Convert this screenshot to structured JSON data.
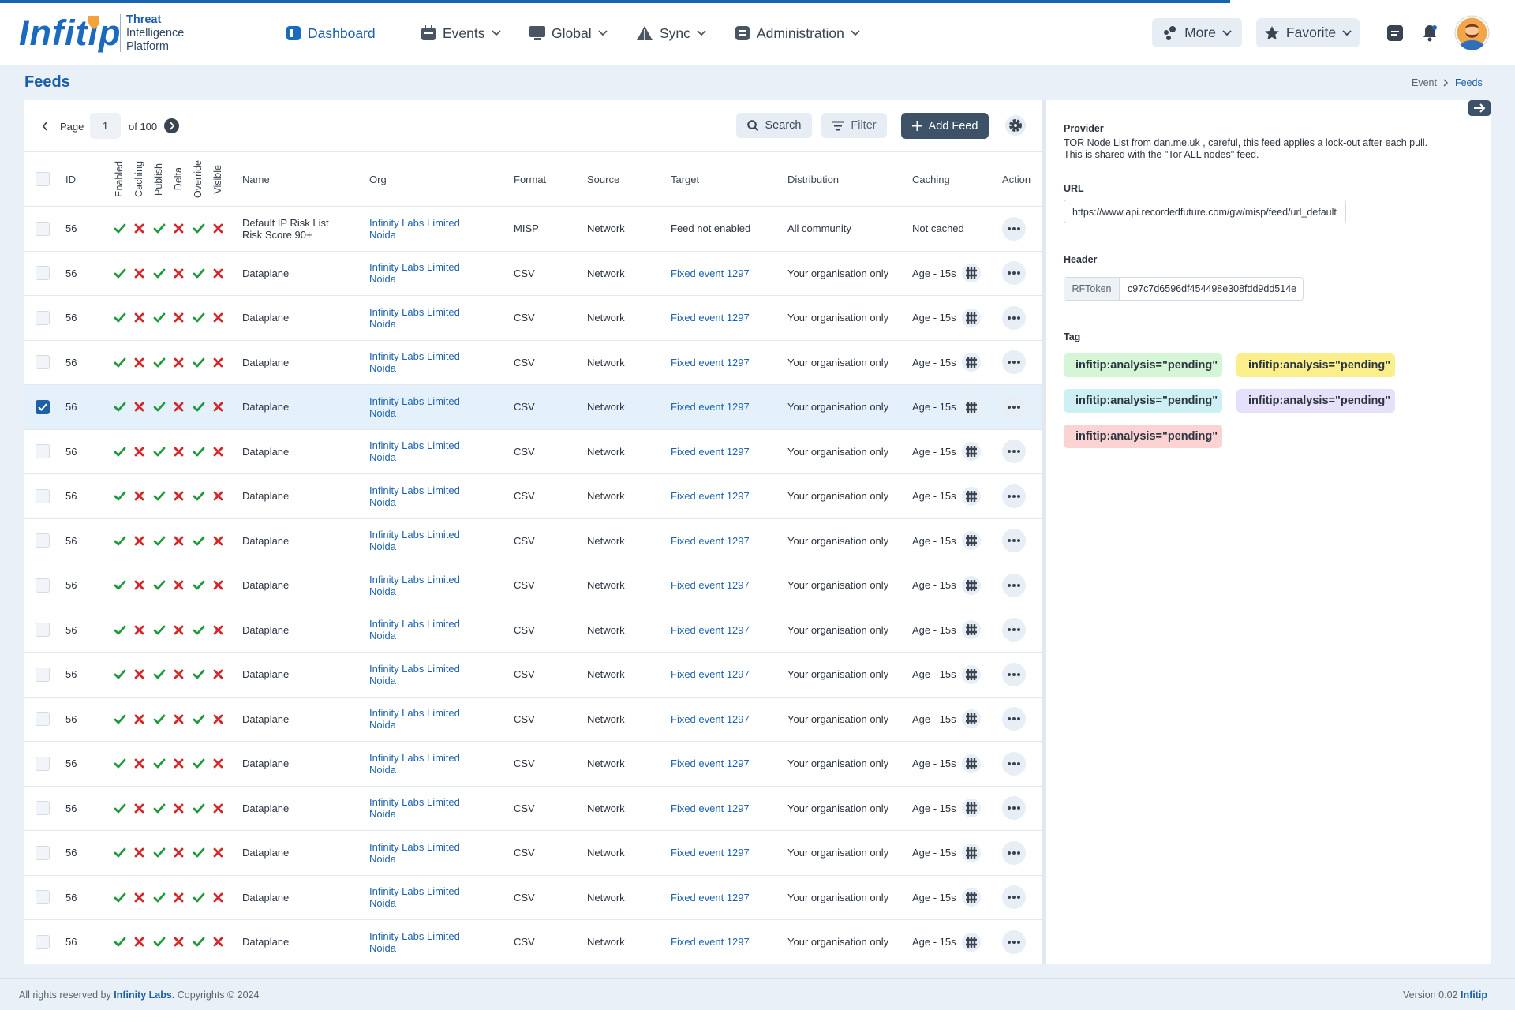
{
  "header": {
    "logo": "Infitip",
    "tagline": [
      "Threat",
      "Intelligence",
      "Platform"
    ],
    "nav": [
      "Dashboard",
      "Events",
      "Global",
      "Sync",
      "Administration"
    ],
    "more": "More",
    "favorite": "Favorite"
  },
  "page": {
    "title": "Feeds",
    "breadcrumb": [
      "Event",
      "Feeds"
    ]
  },
  "toolbar": {
    "page_label": "Page",
    "page": 1,
    "of": "of 100",
    "search": "Search",
    "filter": "Filter",
    "add": "Add Feed"
  },
  "table": {
    "columns": [
      "ID",
      "Enabled",
      "Caching",
      "Publish",
      "Delta",
      "Override",
      "Visible",
      "Name",
      "Org",
      "Format",
      "Source",
      "Target",
      "Distribution",
      "Caching",
      "Action"
    ],
    "rows": [
      {
        "id": 56,
        "flags": [
          true,
          false,
          true,
          false,
          true,
          false
        ],
        "name": [
          "Default IP Risk List",
          "Risk Score 90+"
        ],
        "org": [
          "Infinity Labs Limited",
          "Noida"
        ],
        "format": "MISP",
        "source": "Network",
        "target": "Feed not enabled",
        "target_link": false,
        "distribution": "All community",
        "caching": "Not cached",
        "cache_icon": false,
        "selected": false
      },
      {
        "id": 56,
        "flags": [
          true,
          false,
          true,
          false,
          true,
          false
        ],
        "name": [
          "Dataplane"
        ],
        "org": [
          "Infinity Labs Limited",
          "Noida"
        ],
        "format": "CSV",
        "source": "Network",
        "target": "Fixed event 1297",
        "target_link": true,
        "distribution": "Your organisation only",
        "caching": "Age - 15s",
        "cache_icon": true,
        "selected": false
      },
      {
        "id": 56,
        "flags": [
          true,
          false,
          true,
          false,
          true,
          false
        ],
        "name": [
          "Dataplane"
        ],
        "org": [
          "Infinity Labs Limited",
          "Noida"
        ],
        "format": "CSV",
        "source": "Network",
        "target": "Fixed event 1297",
        "target_link": true,
        "distribution": "Your organisation only",
        "caching": "Age - 15s",
        "cache_icon": true,
        "selected": false
      },
      {
        "id": 56,
        "flags": [
          true,
          false,
          true,
          false,
          true,
          false
        ],
        "name": [
          "Dataplane"
        ],
        "org": [
          "Infinity Labs Limited",
          "Noida"
        ],
        "format": "CSV",
        "source": "Network",
        "target": "Fixed event 1297",
        "target_link": true,
        "distribution": "Your organisation only",
        "caching": "Age - 15s",
        "cache_icon": true,
        "selected": false
      },
      {
        "id": 56,
        "flags": [
          true,
          false,
          true,
          false,
          true,
          false
        ],
        "name": [
          "Dataplane"
        ],
        "org": [
          "Infinity Labs Limited",
          "Noida"
        ],
        "format": "CSV",
        "source": "Network",
        "target": "Fixed event 1297",
        "target_link": true,
        "distribution": "Your organisation only",
        "caching": "Age - 15s",
        "cache_icon": true,
        "selected": true
      },
      {
        "id": 56,
        "flags": [
          true,
          false,
          true,
          false,
          true,
          false
        ],
        "name": [
          "Dataplane"
        ],
        "org": [
          "Infinity Labs Limited",
          "Noida"
        ],
        "format": "CSV",
        "source": "Network",
        "target": "Fixed event 1297",
        "target_link": true,
        "distribution": "Your organisation only",
        "caching": "Age - 15s",
        "cache_icon": true,
        "selected": false
      },
      {
        "id": 56,
        "flags": [
          true,
          false,
          true,
          false,
          true,
          false
        ],
        "name": [
          "Dataplane"
        ],
        "org": [
          "Infinity Labs Limited",
          "Noida"
        ],
        "format": "CSV",
        "source": "Network",
        "target": "Fixed event 1297",
        "target_link": true,
        "distribution": "Your organisation only",
        "caching": "Age - 15s",
        "cache_icon": true,
        "selected": false
      },
      {
        "id": 56,
        "flags": [
          true,
          false,
          true,
          false,
          true,
          false
        ],
        "name": [
          "Dataplane"
        ],
        "org": [
          "Infinity Labs Limited",
          "Noida"
        ],
        "format": "CSV",
        "source": "Network",
        "target": "Fixed event 1297",
        "target_link": true,
        "distribution": "Your organisation only",
        "caching": "Age - 15s",
        "cache_icon": true,
        "selected": false
      },
      {
        "id": 56,
        "flags": [
          true,
          false,
          true,
          false,
          true,
          false
        ],
        "name": [
          "Dataplane"
        ],
        "org": [
          "Infinity Labs Limited",
          "Noida"
        ],
        "format": "CSV",
        "source": "Network",
        "target": "Fixed event 1297",
        "target_link": true,
        "distribution": "Your organisation only",
        "caching": "Age - 15s",
        "cache_icon": true,
        "selected": false
      },
      {
        "id": 56,
        "flags": [
          true,
          false,
          true,
          false,
          true,
          false
        ],
        "name": [
          "Dataplane"
        ],
        "org": [
          "Infinity Labs Limited",
          "Noida"
        ],
        "format": "CSV",
        "source": "Network",
        "target": "Fixed event 1297",
        "target_link": true,
        "distribution": "Your organisation only",
        "caching": "Age - 15s",
        "cache_icon": true,
        "selected": false
      },
      {
        "id": 56,
        "flags": [
          true,
          false,
          true,
          false,
          true,
          false
        ],
        "name": [
          "Dataplane"
        ],
        "org": [
          "Infinity Labs Limited",
          "Noida"
        ],
        "format": "CSV",
        "source": "Network",
        "target": "Fixed event 1297",
        "target_link": true,
        "distribution": "Your organisation only",
        "caching": "Age - 15s",
        "cache_icon": true,
        "selected": false
      },
      {
        "id": 56,
        "flags": [
          true,
          false,
          true,
          false,
          true,
          false
        ],
        "name": [
          "Dataplane"
        ],
        "org": [
          "Infinity Labs Limited",
          "Noida"
        ],
        "format": "CSV",
        "source": "Network",
        "target": "Fixed event 1297",
        "target_link": true,
        "distribution": "Your organisation only",
        "caching": "Age - 15s",
        "cache_icon": true,
        "selected": false
      },
      {
        "id": 56,
        "flags": [
          true,
          false,
          true,
          false,
          true,
          false
        ],
        "name": [
          "Dataplane"
        ],
        "org": [
          "Infinity Labs Limited",
          "Noida"
        ],
        "format": "CSV",
        "source": "Network",
        "target": "Fixed event 1297",
        "target_link": true,
        "distribution": "Your organisation only",
        "caching": "Age - 15s",
        "cache_icon": true,
        "selected": false
      },
      {
        "id": 56,
        "flags": [
          true,
          false,
          true,
          false,
          true,
          false
        ],
        "name": [
          "Dataplane"
        ],
        "org": [
          "Infinity Labs Limited",
          "Noida"
        ],
        "format": "CSV",
        "source": "Network",
        "target": "Fixed event 1297",
        "target_link": true,
        "distribution": "Your organisation only",
        "caching": "Age - 15s",
        "cache_icon": true,
        "selected": false
      },
      {
        "id": 56,
        "flags": [
          true,
          false,
          true,
          false,
          true,
          false
        ],
        "name": [
          "Dataplane"
        ],
        "org": [
          "Infinity Labs Limited",
          "Noida"
        ],
        "format": "CSV",
        "source": "Network",
        "target": "Fixed event 1297",
        "target_link": true,
        "distribution": "Your organisation only",
        "caching": "Age - 15s",
        "cache_icon": true,
        "selected": false
      },
      {
        "id": 56,
        "flags": [
          true,
          false,
          true,
          false,
          true,
          false
        ],
        "name": [
          "Dataplane"
        ],
        "org": [
          "Infinity Labs Limited",
          "Noida"
        ],
        "format": "CSV",
        "source": "Network",
        "target": "Fixed event 1297",
        "target_link": true,
        "distribution": "Your organisation only",
        "caching": "Age - 15s",
        "cache_icon": true,
        "selected": false
      },
      {
        "id": 56,
        "flags": [
          true,
          false,
          true,
          false,
          true,
          false
        ],
        "name": [
          "Dataplane"
        ],
        "org": [
          "Infinity Labs Limited",
          "Noida"
        ],
        "format": "CSV",
        "source": "Network",
        "target": "Fixed event 1297",
        "target_link": true,
        "distribution": "Your organisation only",
        "caching": "Age - 15s",
        "cache_icon": true,
        "selected": false
      }
    ]
  },
  "panel": {
    "provider_label": "Provider",
    "provider_text": [
      "TOR Node List from dan.me.uk , careful, this feed applies a lock-out after each pull.",
      "This is shared with the \"Tor ALL nodes\" feed."
    ],
    "url_label": "URL",
    "url": "https://www.api.recordedfuture.com/gw/misp/feed/url_default",
    "header_label": "Header",
    "header_key": "RFToken",
    "header_value": "c97c7d6596df454498e308fdd9dd514e",
    "tag_label": "Tag",
    "tags": [
      {
        "text": "infitip:analysis=\"pending\"",
        "color": "#d4f5d6",
        "icon_color": "#2e9d3a",
        "icon": "user"
      },
      {
        "text": "infitip:analysis=\"pending\"",
        "color": "#fbef8c",
        "icon_color": "#c99a06",
        "icon": "globe"
      },
      {
        "text": "infitip:analysis=\"pending\"",
        "color": "#cdf0f5",
        "icon_color": "#2a9fb0",
        "icon": "user"
      },
      {
        "text": "infitip:analysis=\"pending\"",
        "color": "#e6e0fa",
        "icon_color": "#7a62d6",
        "icon": "user"
      },
      {
        "text": "infitip:analysis=\"pending\"",
        "color": "#fbd3d3",
        "icon_color": "#d43a3a",
        "icon": "globe"
      }
    ]
  },
  "footer": {
    "left": "All rights reserved by",
    "company": "Infinity Labs.",
    "copyright": "Copyrights © 2024",
    "version": "Version 0.02",
    "brand": "Infitip"
  }
}
